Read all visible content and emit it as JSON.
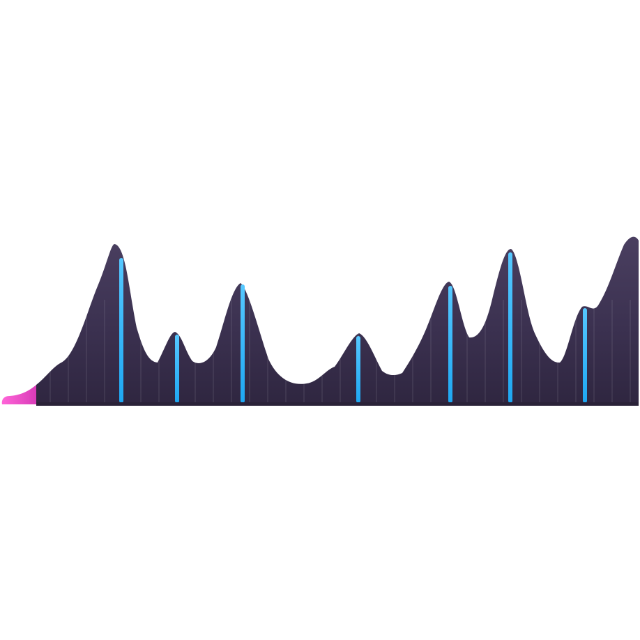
{
  "graphic": {
    "icon": "audio-waveform-icon",
    "style": {
      "fill_dark": "#2f2640",
      "fill_mid": "#3b3150",
      "fill_light": "#4a3f60",
      "accent_pink": "#d93bb8",
      "accent_blue": "#1ea7f2",
      "accent_blue_light": "#56c8ff",
      "background": "#ffffff"
    }
  }
}
